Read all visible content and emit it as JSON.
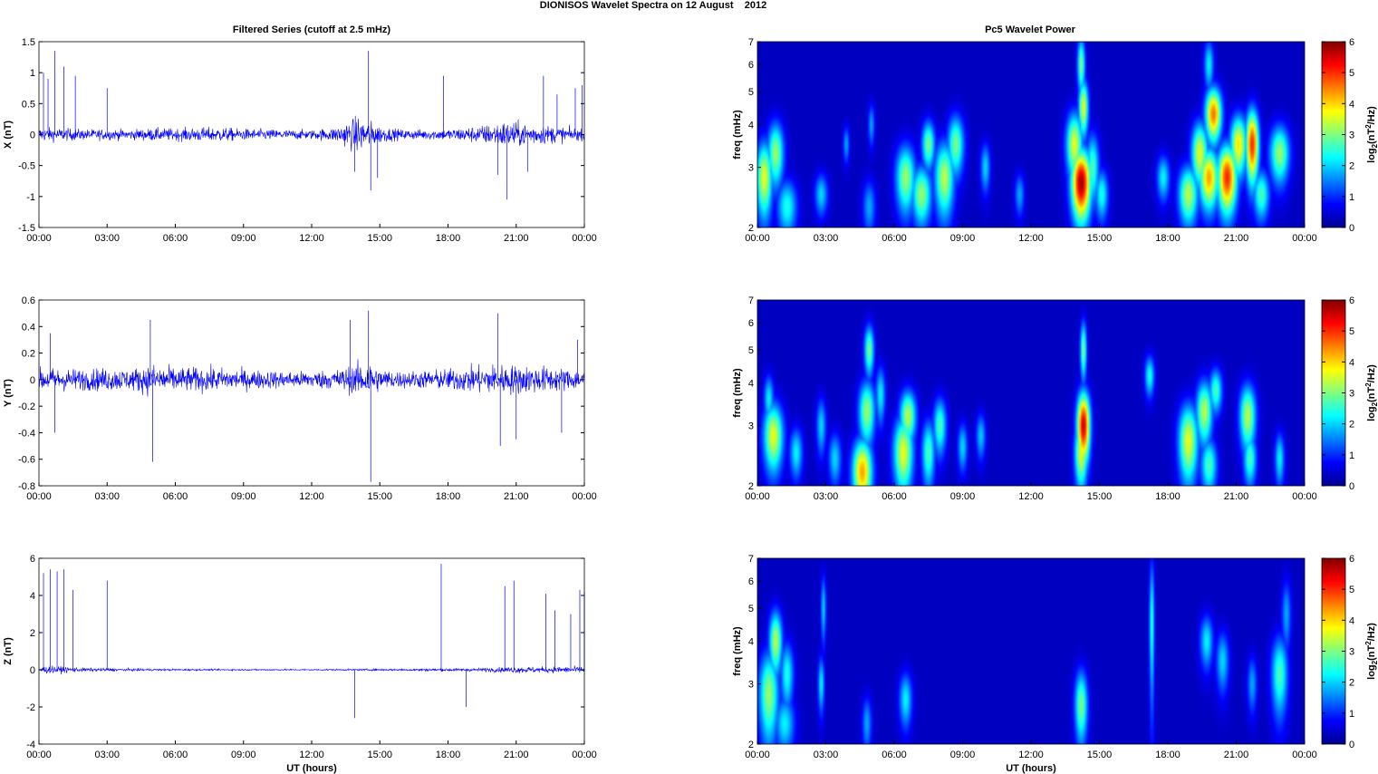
{
  "figure": {
    "title": "DIONISOS Wavelet Spectra on 12 August    2012",
    "left_title": "Filtered Series (cutoff at 2.5 mHz)",
    "right_title": "Pc5 Wavelet Power",
    "xlabel": "UT (hours)"
  },
  "time_ticks": [
    "00:00",
    "03:00",
    "06:00",
    "09:00",
    "12:00",
    "15:00",
    "18:00",
    "21:00",
    "00:00"
  ],
  "chart_data": [
    {
      "type": "line",
      "component": "X",
      "ylabel": "X (nT)",
      "xlabel": "",
      "xlim": [
        0,
        24
      ],
      "ylim": [
        -1.5,
        1.5
      ],
      "yticks": [
        "1.5",
        "1",
        "0.5",
        "0",
        "-0.5",
        "-1",
        "-1.5"
      ],
      "yvals": [
        1.5,
        1,
        0.5,
        0,
        -0.5,
        -1,
        -1.5
      ],
      "color": "#0000ff",
      "envelope_x": [
        0,
        1,
        2,
        3,
        4,
        5,
        6,
        7,
        8,
        9,
        10,
        11,
        12,
        13,
        13.5,
        14,
        14.5,
        15,
        15.5,
        16,
        17,
        18,
        19,
        20,
        20.5,
        21,
        21.5,
        22,
        23,
        24
      ],
      "envelope_amp": [
        0.2,
        0.18,
        0.15,
        0.15,
        0.14,
        0.18,
        0.17,
        0.2,
        0.2,
        0.16,
        0.15,
        0.14,
        0.13,
        0.2,
        0.35,
        0.5,
        0.4,
        0.25,
        0.18,
        0.14,
        0.14,
        0.16,
        0.22,
        0.3,
        0.38,
        0.35,
        0.3,
        0.28,
        0.22,
        0.15
      ],
      "spikes": [
        [
          0.2,
          1.0
        ],
        [
          0.4,
          0.9
        ],
        [
          0.7,
          1.35
        ],
        [
          1.1,
          1.1
        ],
        [
          1.6,
          0.95
        ],
        [
          3.0,
          0.75
        ],
        [
          13.9,
          -0.6
        ],
        [
          14.5,
          1.35
        ],
        [
          14.6,
          -0.9
        ],
        [
          14.9,
          -0.7
        ],
        [
          17.8,
          0.95
        ],
        [
          20.2,
          -0.65
        ],
        [
          20.6,
          -1.05
        ],
        [
          21.5,
          -0.6
        ],
        [
          22.2,
          0.95
        ],
        [
          22.8,
          0.65
        ],
        [
          23.6,
          0.75
        ],
        [
          23.9,
          0.8
        ]
      ]
    },
    {
      "type": "line",
      "component": "Y",
      "ylabel": "Y (nT)",
      "xlabel": "",
      "xlim": [
        0,
        24
      ],
      "ylim": [
        -0.8,
        0.6
      ],
      "yticks": [
        "0.6",
        "0.4",
        "0.2",
        "0",
        "-0.2",
        "-0.4",
        "-0.6",
        "-0.8"
      ],
      "yvals": [
        0.6,
        0.4,
        0.2,
        0,
        -0.2,
        -0.4,
        -0.6,
        -0.8
      ],
      "color": "#0000ff",
      "envelope_x": [
        0,
        1,
        2,
        3,
        4,
        5,
        6,
        7,
        8,
        9,
        10,
        11,
        12,
        13,
        14,
        14.5,
        15,
        16,
        17,
        18,
        19,
        20,
        21,
        22,
        23,
        24
      ],
      "envelope_amp": [
        0.15,
        0.15,
        0.14,
        0.15,
        0.14,
        0.2,
        0.16,
        0.16,
        0.15,
        0.13,
        0.12,
        0.11,
        0.11,
        0.13,
        0.2,
        0.25,
        0.14,
        0.11,
        0.12,
        0.14,
        0.17,
        0.2,
        0.19,
        0.18,
        0.15,
        0.12
      ],
      "spikes": [
        [
          0.5,
          0.35
        ],
        [
          0.7,
          -0.4
        ],
        [
          4.9,
          0.45
        ],
        [
          5.0,
          -0.62
        ],
        [
          13.7,
          0.45
        ],
        [
          14.5,
          0.52
        ],
        [
          14.6,
          -0.77
        ],
        [
          20.2,
          0.5
        ],
        [
          20.3,
          -0.5
        ],
        [
          21.0,
          -0.45
        ],
        [
          23.0,
          -0.4
        ],
        [
          23.7,
          0.3
        ]
      ]
    },
    {
      "type": "line",
      "component": "Z",
      "ylabel": "Z (nT)",
      "xlabel": "UT (hours)",
      "xlim": [
        0,
        24
      ],
      "ylim": [
        -4,
        6
      ],
      "yticks": [
        "6",
        "4",
        "2",
        "0",
        "-2",
        "-4"
      ],
      "yvals": [
        6,
        4,
        2,
        0,
        -2,
        -4
      ],
      "color": "#0000ff",
      "envelope_x": [
        0,
        1,
        2,
        3,
        4,
        6,
        8,
        10,
        12,
        14,
        16,
        17,
        18,
        19,
        20,
        21,
        22,
        23,
        24
      ],
      "envelope_amp": [
        0.35,
        0.3,
        0.18,
        0.15,
        0.12,
        0.08,
        0.07,
        0.07,
        0.07,
        0.08,
        0.1,
        0.12,
        0.15,
        0.14,
        0.2,
        0.3,
        0.28,
        0.3,
        0.3
      ],
      "spikes": [
        [
          0.2,
          5.2
        ],
        [
          0.5,
          5.4
        ],
        [
          0.8,
          5.3
        ],
        [
          1.1,
          5.4
        ],
        [
          1.5,
          4.3
        ],
        [
          3.0,
          4.8
        ],
        [
          13.9,
          -2.6
        ],
        [
          17.7,
          5.7
        ],
        [
          18.8,
          -2.0
        ],
        [
          20.5,
          4.5
        ],
        [
          20.9,
          4.8
        ],
        [
          22.3,
          4.1
        ],
        [
          22.7,
          3.2
        ],
        [
          23.4,
          3.0
        ],
        [
          23.8,
          4.3
        ],
        [
          24.0,
          4.2
        ]
      ]
    },
    {
      "type": "heatmap",
      "component": "X",
      "ylabel": "freq (mHz)",
      "xlabel": "",
      "xlim": [
        0,
        24
      ],
      "ylim": [
        2,
        7
      ],
      "yscale": "log",
      "yticks": [
        "7",
        "6",
        "5",
        "4",
        "3",
        "2"
      ],
      "yvals": [
        7,
        6,
        5,
        4,
        3,
        2
      ],
      "colorbar": {
        "label_base": "log",
        "label_sub": "2",
        "label_open": "(nT",
        "label_sup": "2",
        "label_close": "/Hz)",
        "ticks": [
          "6",
          "5",
          "4",
          "3",
          "2",
          "1",
          "0"
        ],
        "range": [
          0,
          6
        ]
      },
      "blobs": [
        [
          0.3,
          2.8,
          0.25,
          0.5,
          3.5
        ],
        [
          0.8,
          3.3,
          0.25,
          0.5,
          3.0
        ],
        [
          1.3,
          2.3,
          0.3,
          0.3,
          2.2
        ],
        [
          2.8,
          2.5,
          0.2,
          0.25,
          1.8
        ],
        [
          3.9,
          3.5,
          0.1,
          0.3,
          1.5
        ],
        [
          4.9,
          2.3,
          0.2,
          0.3,
          1.5
        ],
        [
          5.0,
          4.0,
          0.1,
          0.4,
          1.5
        ],
        [
          6.5,
          2.8,
          0.3,
          0.45,
          3.0
        ],
        [
          7.2,
          2.5,
          0.3,
          0.35,
          3.0
        ],
        [
          7.5,
          3.5,
          0.2,
          0.4,
          2.8
        ],
        [
          8.2,
          2.8,
          0.3,
          0.5,
          3.2
        ],
        [
          8.7,
          3.5,
          0.25,
          0.5,
          2.8
        ],
        [
          10.0,
          3.0,
          0.15,
          0.35,
          1.8
        ],
        [
          11.5,
          2.5,
          0.15,
          0.25,
          1.5
        ],
        [
          13.9,
          3.5,
          0.25,
          0.55,
          3.5
        ],
        [
          14.2,
          2.7,
          0.3,
          0.45,
          5.8
        ],
        [
          14.3,
          4.5,
          0.15,
          0.6,
          3.5
        ],
        [
          14.7,
          3.0,
          0.2,
          0.5,
          2.5
        ],
        [
          15.1,
          2.5,
          0.2,
          0.3,
          2.2
        ],
        [
          17.8,
          2.8,
          0.2,
          0.3,
          2.0
        ],
        [
          18.9,
          2.5,
          0.3,
          0.35,
          3.2
        ],
        [
          19.4,
          3.3,
          0.25,
          0.5,
          3.5
        ],
        [
          19.8,
          2.8,
          0.3,
          0.4,
          4.2
        ],
        [
          20.0,
          4.3,
          0.25,
          0.55,
          4.5
        ],
        [
          20.6,
          2.8,
          0.3,
          0.45,
          5.0
        ],
        [
          21.1,
          3.5,
          0.25,
          0.5,
          3.8
        ],
        [
          21.7,
          3.5,
          0.2,
          0.6,
          5.0
        ],
        [
          22.1,
          2.5,
          0.25,
          0.3,
          2.5
        ],
        [
          22.9,
          3.3,
          0.3,
          0.45,
          3.0
        ],
        [
          14.2,
          6.0,
          0.12,
          0.8,
          2.8
        ],
        [
          19.8,
          6.0,
          0.15,
          0.7,
          2.0
        ]
      ]
    },
    {
      "type": "heatmap",
      "component": "Y",
      "ylabel": "freq (mHz)",
      "xlabel": "",
      "xlim": [
        0,
        24
      ],
      "ylim": [
        2,
        7
      ],
      "yscale": "log",
      "yticks": [
        "7",
        "6",
        "5",
        "4",
        "3",
        "2"
      ],
      "yvals": [
        7,
        6,
        5,
        4,
        3,
        2
      ],
      "colorbar": {
        "label_base": "log",
        "label_sub": "2",
        "label_open": "(nT",
        "label_sup": "2",
        "label_close": "/Hz)",
        "ticks": [
          "6",
          "5",
          "4",
          "3",
          "2",
          "1",
          "0"
        ],
        "range": [
          0,
          6
        ]
      },
      "blobs": [
        [
          0.7,
          2.8,
          0.3,
          0.45,
          3.5
        ],
        [
          0.5,
          3.6,
          0.15,
          0.4,
          2.0
        ],
        [
          1.7,
          2.5,
          0.2,
          0.3,
          2.0
        ],
        [
          2.8,
          3.0,
          0.15,
          0.4,
          1.8
        ],
        [
          3.4,
          2.4,
          0.2,
          0.3,
          1.8
        ],
        [
          4.6,
          2.2,
          0.3,
          0.35,
          4.2
        ],
        [
          4.8,
          3.3,
          0.25,
          0.5,
          3.0
        ],
        [
          4.9,
          5.0,
          0.15,
          0.6,
          2.8
        ],
        [
          5.4,
          3.7,
          0.15,
          0.5,
          2.0
        ],
        [
          6.4,
          2.5,
          0.3,
          0.45,
          3.5
        ],
        [
          6.6,
          3.2,
          0.25,
          0.4,
          3.2
        ],
        [
          7.5,
          2.5,
          0.2,
          0.4,
          2.5
        ],
        [
          8.0,
          3.0,
          0.2,
          0.4,
          2.5
        ],
        [
          9.0,
          2.6,
          0.15,
          0.3,
          1.8
        ],
        [
          9.8,
          2.8,
          0.15,
          0.3,
          1.7
        ],
        [
          14.2,
          2.5,
          0.2,
          0.4,
          3.5
        ],
        [
          14.3,
          3.0,
          0.2,
          0.5,
          5.5
        ],
        [
          14.3,
          5.0,
          0.1,
          0.7,
          2.8
        ],
        [
          17.2,
          4.2,
          0.15,
          0.4,
          2.2
        ],
        [
          18.9,
          2.7,
          0.3,
          0.5,
          3.5
        ],
        [
          19.6,
          3.3,
          0.25,
          0.5,
          3.2
        ],
        [
          19.8,
          2.3,
          0.25,
          0.3,
          2.5
        ],
        [
          20.1,
          3.8,
          0.2,
          0.4,
          2.5
        ],
        [
          21.5,
          3.2,
          0.25,
          0.5,
          3.2
        ],
        [
          21.6,
          2.4,
          0.2,
          0.3,
          2.5
        ],
        [
          22.9,
          2.4,
          0.15,
          0.3,
          2.0
        ]
      ]
    },
    {
      "type": "heatmap",
      "component": "Z",
      "ylabel": "freq (mHz)",
      "xlabel": "UT (hours)",
      "xlim": [
        0,
        24
      ],
      "ylim": [
        2,
        7
      ],
      "yscale": "log",
      "yticks": [
        "7",
        "6",
        "5",
        "4",
        "3",
        "2"
      ],
      "yvals": [
        7,
        6,
        5,
        4,
        3,
        2
      ],
      "colorbar": {
        "label_base": "log",
        "label_sub": "2",
        "label_open": "(nT",
        "label_sup": "2",
        "label_close": "/Hz)",
        "ticks": [
          "6",
          "5",
          "4",
          "3",
          "2",
          "1",
          "0"
        ],
        "range": [
          0,
          6
        ]
      },
      "blobs": [
        [
          0.5,
          2.8,
          0.3,
          0.6,
          3.0
        ],
        [
          0.8,
          4.0,
          0.2,
          0.6,
          3.2
        ],
        [
          1.3,
          3.2,
          0.2,
          0.5,
          2.2
        ],
        [
          1.2,
          2.3,
          0.3,
          0.3,
          2.0
        ],
        [
          2.8,
          3.0,
          0.1,
          0.4,
          2.0
        ],
        [
          2.9,
          5.0,
          0.08,
          0.8,
          1.8
        ],
        [
          4.8,
          2.3,
          0.15,
          0.3,
          1.5
        ],
        [
          6.5,
          2.7,
          0.2,
          0.35,
          2.0
        ],
        [
          14.2,
          2.6,
          0.2,
          0.45,
          2.8
        ],
        [
          17.3,
          4.5,
          0.08,
          1.5,
          2.3
        ],
        [
          19.7,
          4.0,
          0.2,
          0.5,
          2.0
        ],
        [
          20.4,
          3.5,
          0.2,
          0.5,
          1.8
        ],
        [
          21.7,
          3.0,
          0.15,
          0.4,
          1.5
        ],
        [
          22.9,
          3.2,
          0.25,
          0.6,
          2.5
        ],
        [
          23.2,
          4.8,
          0.15,
          0.8,
          1.5
        ]
      ]
    }
  ]
}
